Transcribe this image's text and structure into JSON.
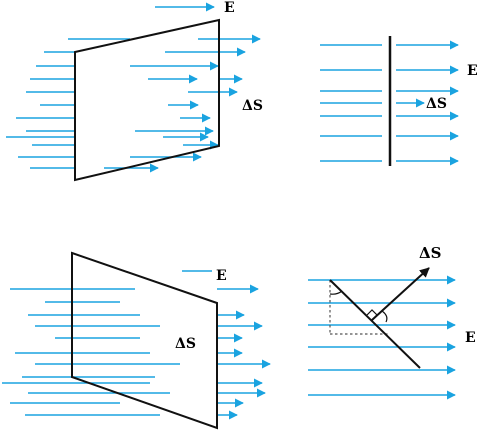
{
  "colors": {
    "field_line": "#1aa3e0",
    "outline": "#111111",
    "dashed": "#555555",
    "background": "#ffffff"
  },
  "panels": [
    {
      "id": "top-left",
      "field_label": "E",
      "area_label": "ΔS"
    },
    {
      "id": "top-right",
      "field_label": "E",
      "area_label": "ΔS"
    },
    {
      "id": "bottom-left",
      "field_label": "E",
      "area_label": "ΔS"
    },
    {
      "id": "bottom-right",
      "field_label": "E",
      "area_label": "ΔS"
    }
  ]
}
